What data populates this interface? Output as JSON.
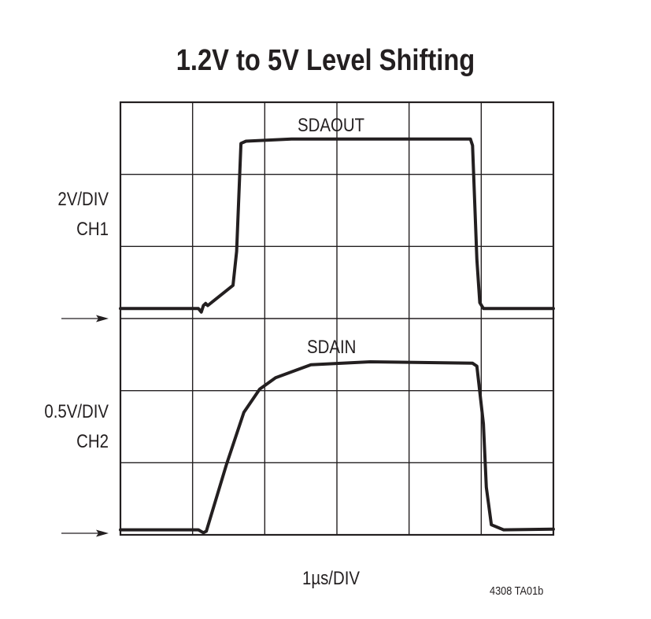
{
  "chart_data": {
    "type": "line",
    "title": "1.2V to 5V Level Shifting",
    "xlabel": "1µs/DIV",
    "xlim": [
      0,
      6
    ],
    "x_unit": "µs",
    "grid": true,
    "divisions": {
      "x": 6,
      "y": 6
    },
    "channels": [
      {
        "channel_label": "CH1",
        "scale_label": "2V/DIV",
        "volts_per_div": 2,
        "ground_div": 3
      },
      {
        "channel_label": "CH2",
        "scale_label": "0.5V/DIV",
        "volts_per_div": 0.5,
        "ground_div": 0
      }
    ],
    "series": [
      {
        "name": "SDAOUT",
        "channel": 0,
        "t": [
          0,
          1.08,
          1.12,
          1.15,
          1.18,
          1.21,
          1.56,
          1.61,
          1.67,
          1.74,
          2.37,
          4.85,
          4.88,
          4.94,
          4.98,
          5.03,
          6
        ],
        "v": [
          0.28,
          0.28,
          0.18,
          0.36,
          0.42,
          0.36,
          0.92,
          1.86,
          4.86,
          4.92,
          4.98,
          4.98,
          4.8,
          1.64,
          0.44,
          0.28,
          0.28
        ]
      },
      {
        "name": "SDAIN",
        "channel": 1,
        "t": [
          0,
          1.08,
          1.15,
          1.19,
          1.47,
          1.71,
          1.93,
          2.15,
          2.64,
          3.46,
          4.88,
          4.94,
          5.03,
          5.07,
          5.14,
          5.31,
          6
        ],
        "v": [
          0.035,
          0.035,
          0.015,
          0.025,
          0.49,
          0.85,
          1.01,
          1.09,
          1.18,
          1.2,
          1.19,
          1.17,
          0.77,
          0.33,
          0.07,
          0.035,
          0.04
        ]
      }
    ],
    "figure_id": "4308 TA01b",
    "colors": {
      "trace": "#231f20",
      "grid": "#231f20"
    }
  }
}
